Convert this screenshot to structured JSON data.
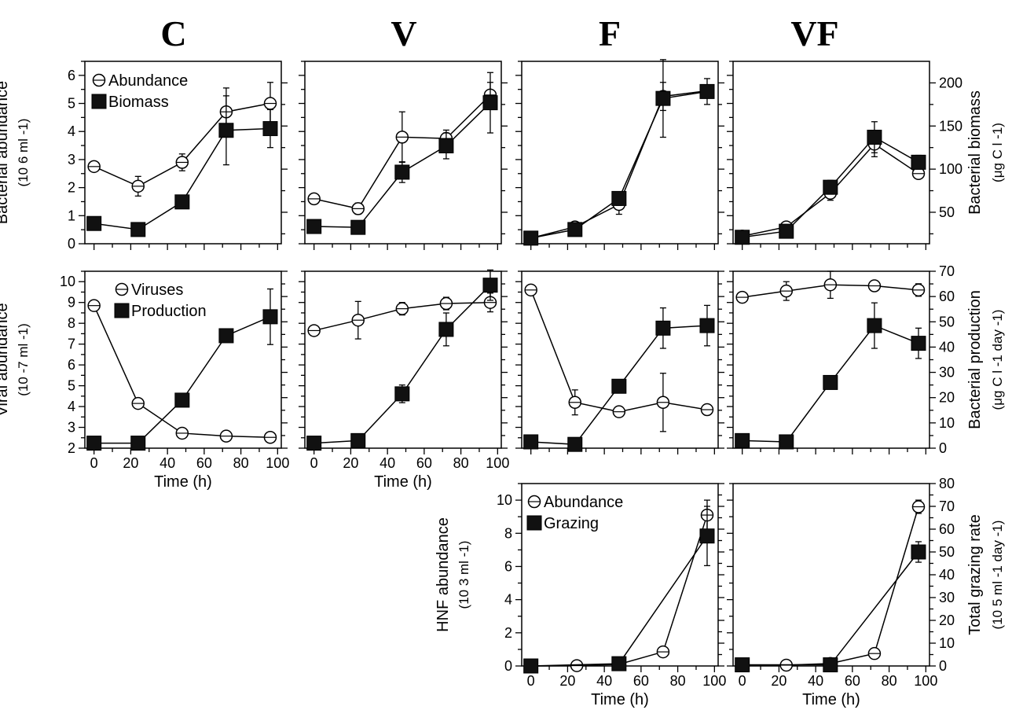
{
  "figure": {
    "column_titles": [
      "C",
      "V",
      "F",
      "VF"
    ]
  },
  "chart_data": [
    {
      "type": "line",
      "id": "C-bact",
      "row": 0,
      "col": 0,
      "x": [
        0,
        24,
        48,
        72,
        96
      ],
      "series": [
        {
          "name": "Abundance",
          "axis": "left",
          "marker": "open-circle",
          "y": [
            2.75,
            2.05,
            2.9,
            4.7,
            5.0
          ],
          "err": [
            0.08,
            0.35,
            0.3,
            0.85,
            0.75
          ]
        },
        {
          "name": "Biomass",
          "axis": "right",
          "marker": "filled-square",
          "y": [
            37,
            30,
            62,
            145,
            147
          ],
          "err": [
            0,
            0,
            0,
            40,
            22
          ]
        }
      ],
      "left_axis": {
        "label": "Bacterial abundance",
        "unit": "(10 6 ml -1)",
        "ticks": [
          "0",
          "1",
          "2",
          "3",
          "4",
          "5",
          "6"
        ],
        "range": [
          0,
          6.5
        ]
      },
      "right_axis": {
        "range": [
          13.5,
          225
        ]
      },
      "xlim": [
        -5,
        102
      ]
    },
    {
      "type": "line",
      "id": "V-bact",
      "row": 0,
      "col": 1,
      "x": [
        0,
        24,
        48,
        72,
        96
      ],
      "series": [
        {
          "name": "Abundance",
          "axis": "left",
          "marker": "open-circle",
          "y": [
            1.6,
            1.25,
            3.8,
            3.75,
            5.3
          ],
          "err": [
            0,
            0.2,
            0.9,
            0.3,
            0.45
          ]
        },
        {
          "name": "Biomass",
          "axis": "right",
          "marker": "filled-square",
          "y": [
            33.5,
            32.5,
            96.5,
            127,
            177
          ],
          "err": [
            0,
            0,
            12,
            15,
            35
          ]
        }
      ],
      "left_axis": {
        "range": [
          0,
          6.5
        ]
      },
      "right_axis": {
        "range": [
          13.5,
          225
        ]
      },
      "xlim": [
        -5,
        102
      ]
    },
    {
      "type": "line",
      "id": "F-bact",
      "row": 0,
      "col": 2,
      "x": [
        0,
        24,
        48,
        72,
        96
      ],
      "series": [
        {
          "name": "Abundance",
          "axis": "left",
          "marker": "open-circle",
          "y": [
            0.2,
            0.6,
            1.4,
            5.25,
            5.45
          ],
          "err": [
            0,
            0.15,
            0.35,
            0.5,
            0.2
          ]
        },
        {
          "name": "Biomass",
          "axis": "right",
          "marker": "filled-square",
          "y": [
            20,
            30,
            66,
            182,
            190
          ],
          "err": [
            0,
            0,
            8,
            45,
            15
          ]
        }
      ],
      "left_axis": {
        "range": [
          0,
          6.5
        ]
      },
      "right_axis": {
        "range": [
          13.5,
          225
        ]
      },
      "xlim": [
        -5,
        102
      ]
    },
    {
      "type": "line",
      "id": "VF-bact",
      "row": 0,
      "col": 3,
      "x": [
        0,
        24,
        48,
        72,
        96
      ],
      "series": [
        {
          "name": "Abundance",
          "axis": "left",
          "marker": "open-circle",
          "y": [
            0.27,
            0.6,
            1.8,
            3.55,
            2.5
          ],
          "err": [
            0,
            0.15,
            0.25,
            0.45,
            0.15
          ]
        },
        {
          "name": "Biomass",
          "axis": "right",
          "marker": "filled-square",
          "y": [
            21,
            28,
            79,
            137,
            108
          ],
          "err": [
            0,
            0,
            8,
            18,
            8
          ]
        }
      ],
      "left_axis": {
        "range": [
          0,
          6.5
        ]
      },
      "right_axis": {
        "label": "Bacterial biomass",
        "unit": "(μg C l -1)",
        "ticks": [
          "50",
          "100",
          "150",
          "200"
        ],
        "range": [
          13.5,
          225
        ]
      },
      "xlim": [
        -5,
        102
      ]
    },
    {
      "type": "line",
      "id": "C-viral",
      "row": 1,
      "col": 0,
      "x": [
        0,
        24,
        48,
        72,
        96
      ],
      "series": [
        {
          "name": "Viruses",
          "axis": "left",
          "marker": "open-circle",
          "y": [
            8.85,
            4.15,
            2.72,
            2.58,
            2.52
          ],
          "err": [
            0,
            0.15,
            0.08,
            0.08,
            0.05
          ]
        },
        {
          "name": "Production",
          "axis": "right",
          "marker": "filled-square",
          "y": [
            2.0,
            2.0,
            19,
            44.5,
            52
          ],
          "err": [
            0,
            0,
            0,
            0,
            11
          ]
        }
      ],
      "left_axis": {
        "label": "Viral abundance",
        "unit": "(10 -7 ml -1)",
        "ticks": [
          "2",
          "3",
          "4",
          "5",
          "6",
          "7",
          "8",
          "9",
          "10"
        ],
        "range": [
          2,
          10.5
        ]
      },
      "right_axis": {
        "range": [
          0,
          70
        ]
      },
      "x_axis": {
        "label": "Time (h)",
        "ticks": [
          "0",
          "20",
          "40",
          "60",
          "80",
          "100"
        ]
      },
      "xlim": [
        -5,
        102
      ]
    },
    {
      "type": "line",
      "id": "V-viral",
      "row": 1,
      "col": 1,
      "x": [
        0,
        24,
        48,
        72,
        96
      ],
      "series": [
        {
          "name": "Viruses",
          "axis": "left",
          "marker": "open-circle",
          "y": [
            7.65,
            8.15,
            8.7,
            8.95,
            9.0
          ],
          "err": [
            0,
            0.9,
            0.3,
            0.3,
            0.45
          ]
        },
        {
          "name": "Production",
          "axis": "right",
          "marker": "filled-square",
          "y": [
            2.0,
            3.0,
            21.5,
            47,
            64.5
          ],
          "err": [
            0,
            0,
            3.5,
            6.5,
            6
          ]
        }
      ],
      "left_axis": {
        "range": [
          2,
          10.5
        ]
      },
      "right_axis": {
        "range": [
          0,
          70
        ]
      },
      "x_axis": {
        "label": "Time (h)",
        "ticks": [
          "0",
          "20",
          "40",
          "60",
          "80",
          "100"
        ]
      },
      "xlim": [
        -5,
        102
      ]
    },
    {
      "type": "line",
      "id": "F-viral",
      "row": 1,
      "col": 2,
      "x": [
        0,
        24,
        48,
        72,
        96
      ],
      "series": [
        {
          "name": "Viruses",
          "axis": "left",
          "marker": "open-circle",
          "y": [
            9.6,
            4.2,
            3.75,
            4.2,
            3.85
          ],
          "err": [
            0,
            0.6,
            0.25,
            1.4,
            0.15
          ]
        },
        {
          "name": "Production",
          "axis": "right",
          "marker": "filled-square",
          "y": [
            2.5,
            1.5,
            24.5,
            47.5,
            48.5
          ],
          "err": [
            0,
            0,
            1.5,
            8,
            8
          ]
        }
      ],
      "left_axis": {
        "range": [
          2,
          10.5
        ]
      },
      "right_axis": {
        "range": [
          0,
          70
        ]
      },
      "xlim": [
        -5,
        102
      ]
    },
    {
      "type": "line",
      "id": "VF-viral",
      "row": 1,
      "col": 3,
      "x": [
        0,
        24,
        48,
        72,
        96
      ],
      "series": [
        {
          "name": "Viruses",
          "axis": "left",
          "marker": "open-circle",
          "y": [
            9.25,
            9.55,
            9.85,
            9.8,
            9.6
          ],
          "err": [
            0,
            0.45,
            0.65,
            0.1,
            0.3
          ]
        },
        {
          "name": "Production",
          "axis": "right",
          "marker": "filled-square",
          "y": [
            3.0,
            2.5,
            26,
            48.5,
            41.5
          ],
          "err": [
            0,
            0,
            0,
            9,
            6
          ]
        }
      ],
      "left_axis": {
        "range": [
          2,
          10.5
        ]
      },
      "right_axis": {
        "label": "Bacterial production",
        "unit": "(μg C l -1 day -1)",
        "ticks": [
          "0",
          "10",
          "20",
          "30",
          "40",
          "50",
          "60",
          "70"
        ],
        "range": [
          0,
          70
        ]
      },
      "xlim": [
        -5,
        102
      ]
    },
    {
      "type": "line",
      "id": "F-hnf",
      "row": 2,
      "col": 2,
      "x": [
        0,
        24,
        48,
        72,
        96
      ],
      "series": [
        {
          "name": "Abundance",
          "axis": "left",
          "marker": "open-circle",
          "y": [
            0.0,
            0.02,
            0.1,
            0.85,
            9.1
          ],
          "err": [
            0,
            0,
            0,
            0,
            0.9
          ]
        },
        {
          "name": "Grazing",
          "axis": "right",
          "marker": "filled-square",
          "y": [
            0.0,
            null,
            1.0,
            null,
            57
          ],
          "err": [
            0,
            0,
            0,
            0,
            13
          ]
        }
      ],
      "x_points": [
        0,
        25,
        48,
        72,
        96
      ],
      "left_axis": {
        "label": "HNF abundance",
        "unit": "(10 3 ml -1)",
        "ticks": [
          "0",
          "2",
          "4",
          "6",
          "8",
          "10"
        ],
        "range": [
          0,
          11
        ]
      },
      "right_axis": {
        "range": [
          0,
          80
        ]
      },
      "x_axis": {
        "label": "Time (h)",
        "ticks": [
          "0",
          "20",
          "40",
          "60",
          "80",
          "100"
        ]
      },
      "xlim": [
        -5,
        102
      ]
    },
    {
      "type": "line",
      "id": "VF-hnf",
      "row": 2,
      "col": 3,
      "x": [
        0,
        24,
        48,
        72,
        96
      ],
      "series": [
        {
          "name": "Abundance",
          "axis": "left",
          "marker": "open-circle",
          "y": [
            0.05,
            0.05,
            0.15,
            0.75,
            9.6
          ],
          "err": [
            0,
            0,
            0,
            0,
            0.4
          ]
        },
        {
          "name": "Grazing",
          "axis": "right",
          "marker": "filled-square",
          "y": [
            0.5,
            null,
            0.5,
            null,
            50
          ],
          "err": [
            0,
            0,
            0,
            0,
            4.5
          ]
        }
      ],
      "left_axis": {
        "range": [
          0,
          11
        ]
      },
      "right_axis": {
        "label": "Total grazing rate",
        "unit": "(10 5 ml -1 day -1)",
        "ticks": [
          "0",
          "10",
          "20",
          "30",
          "40",
          "50",
          "60",
          "70",
          "80"
        ],
        "range": [
          0,
          80
        ]
      },
      "x_axis": {
        "label": "Time (h)",
        "ticks": [
          "0",
          "20",
          "40",
          "60",
          "80",
          "100"
        ]
      },
      "xlim": [
        -5,
        102
      ]
    }
  ],
  "legends": [
    {
      "panel": "C-bact",
      "items": [
        {
          "marker": "open-circle",
          "label": "Abundance"
        },
        {
          "marker": "filled-square",
          "label": "Biomass"
        }
      ]
    },
    {
      "panel": "C-viral",
      "items": [
        {
          "marker": "open-circle",
          "label": "Viruses"
        },
        {
          "marker": "filled-square",
          "label": "Production"
        }
      ]
    },
    {
      "panel": "F-hnf",
      "items": [
        {
          "marker": "open-circle",
          "label": "Abundance"
        },
        {
          "marker": "filled-square",
          "label": "Grazing"
        }
      ]
    }
  ]
}
